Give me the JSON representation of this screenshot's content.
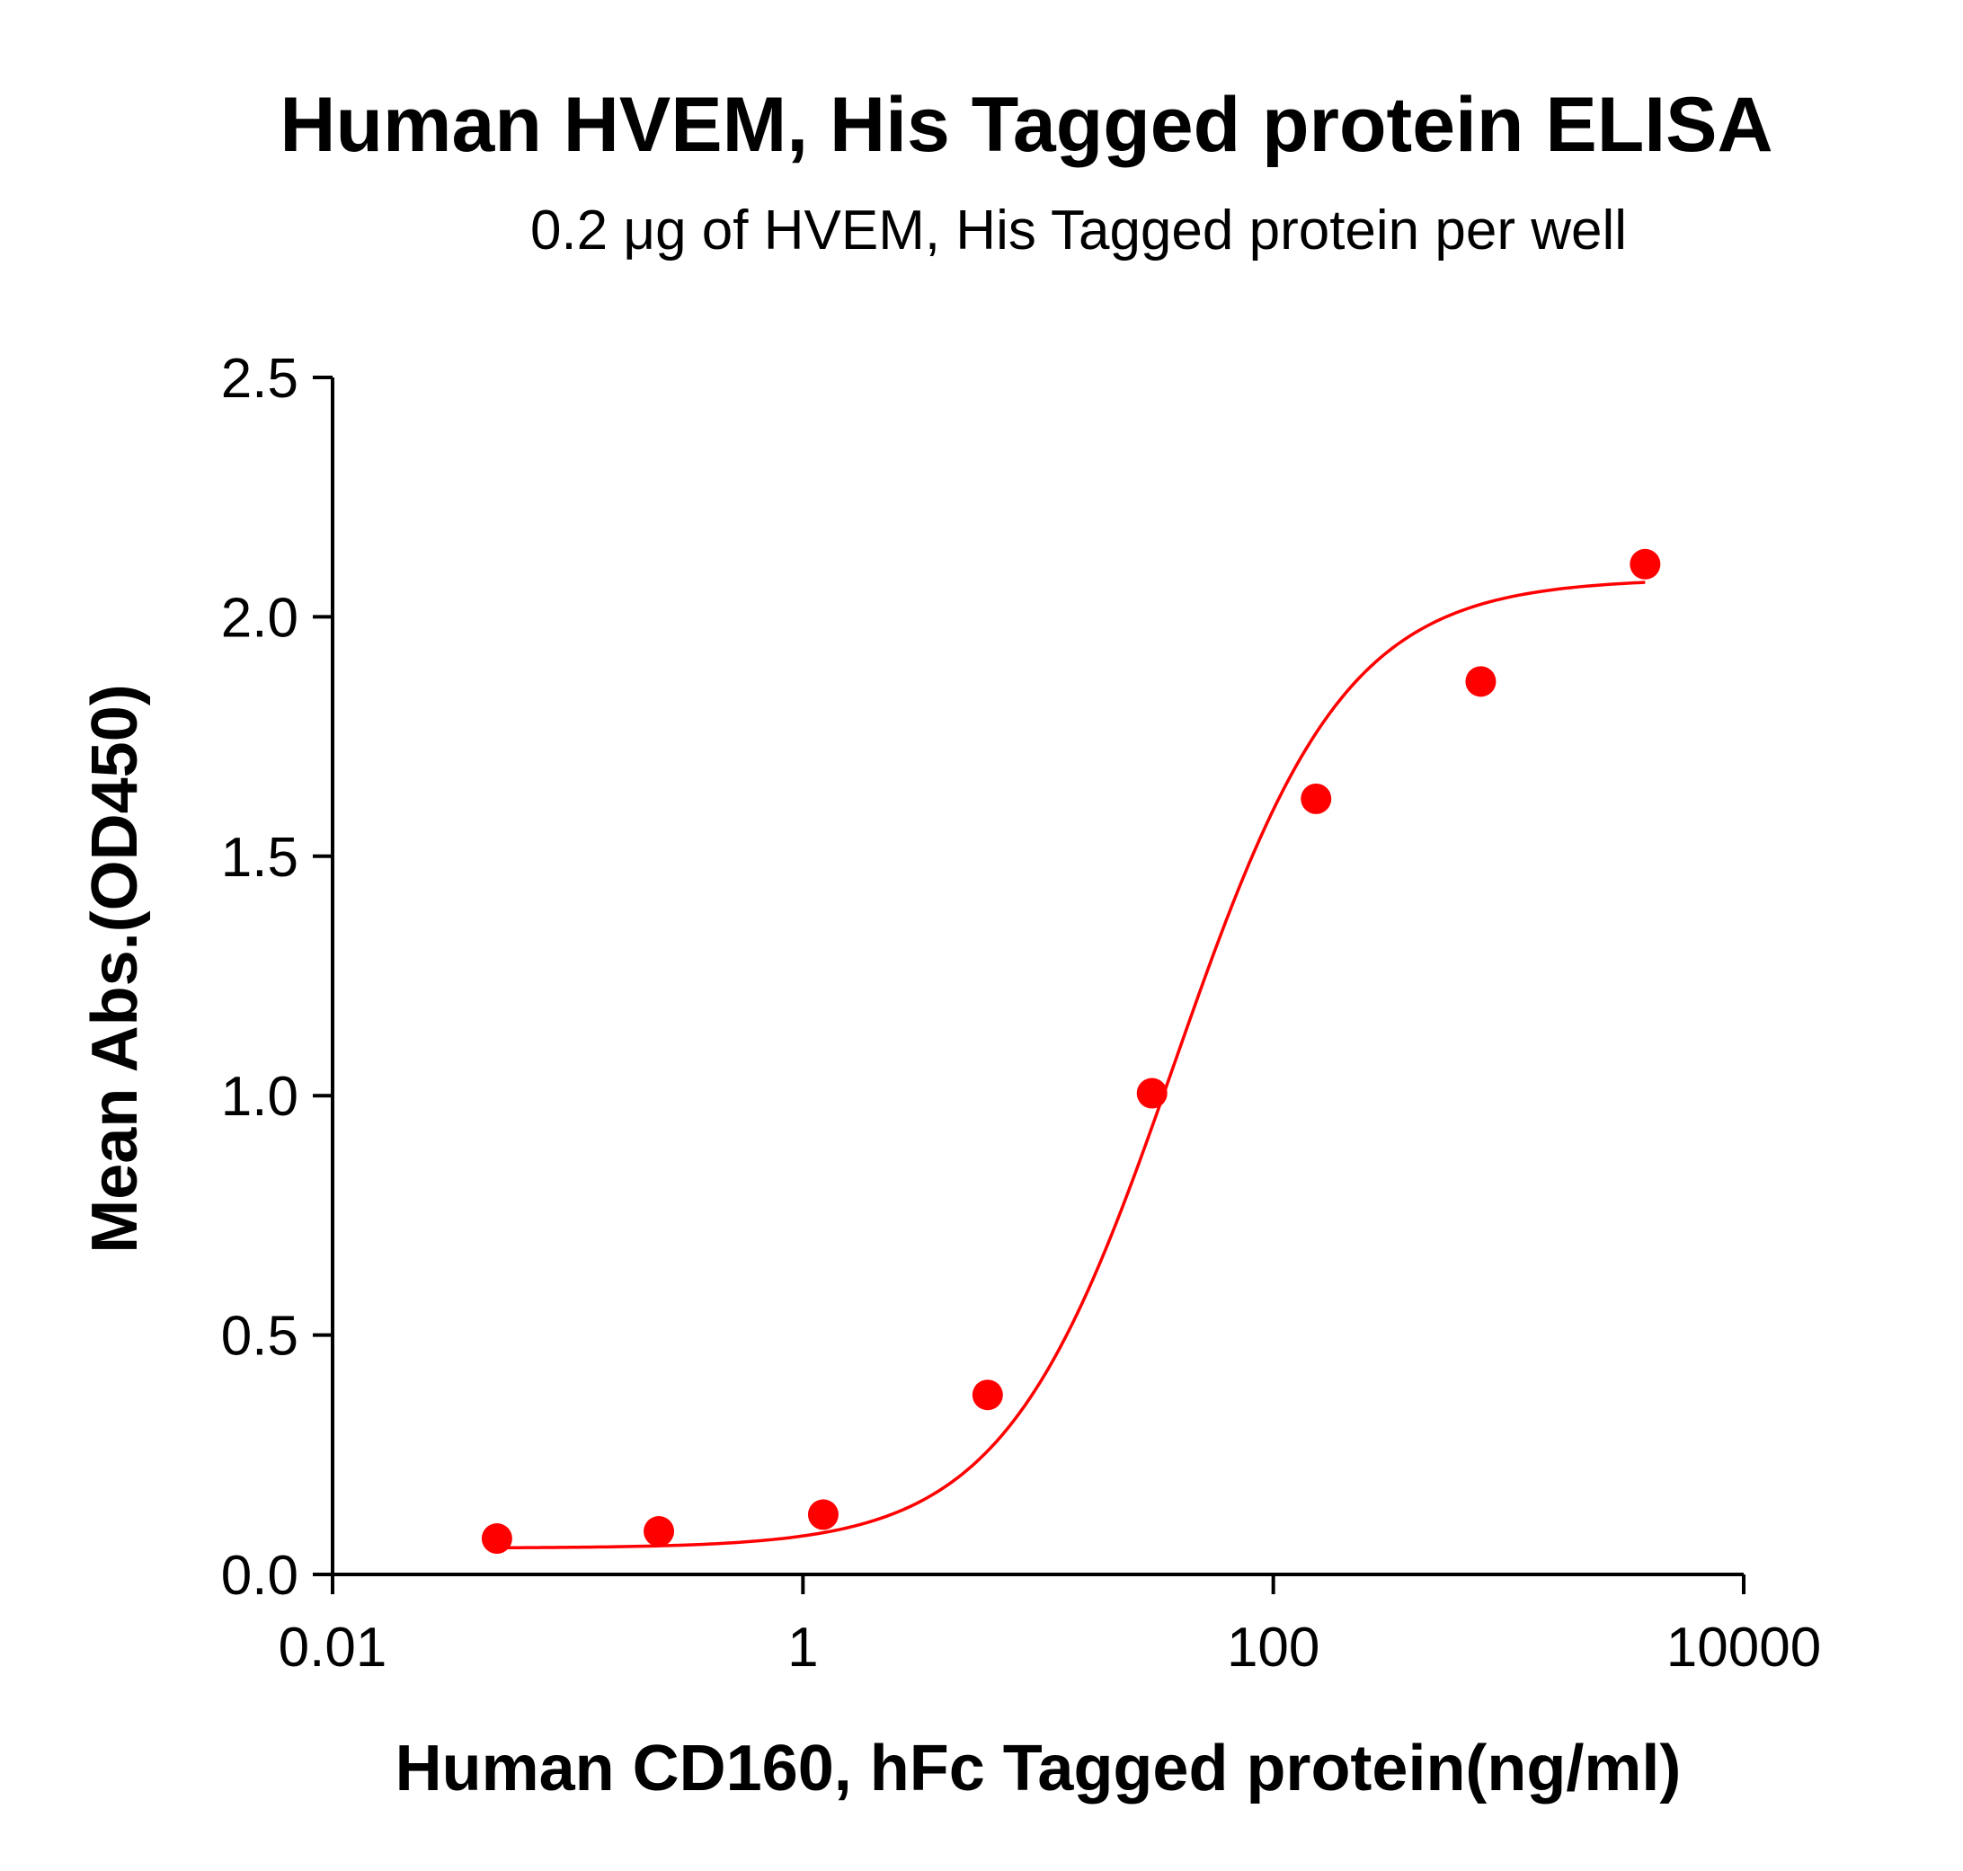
{
  "chart_data": {
    "type": "scatter",
    "title": "Human HVEM, His Tagged protein ELISA",
    "subtitle": "0.2 μg of HVEM, His Tagged protein per well",
    "xlabel": "Human CD160, hFc Tagged protein(ng/ml)",
    "ylabel": "Mean Abs.(OD450)",
    "x_scale": "log",
    "xlim": [
      0.01,
      10000
    ],
    "ylim": [
      0,
      2.5
    ],
    "x_ticks": [
      {
        "value": 0.01,
        "label": "0.01"
      },
      {
        "value": 1,
        "label": "1"
      },
      {
        "value": 100,
        "label": "100"
      },
      {
        "value": 10000,
        "label": "10000"
      }
    ],
    "y_ticks": [
      {
        "value": 0.0,
        "label": "0.0"
      },
      {
        "value": 0.5,
        "label": "0.5"
      },
      {
        "value": 1.0,
        "label": "1.0"
      },
      {
        "value": 1.5,
        "label": "1.5"
      },
      {
        "value": 2.0,
        "label": "2.0"
      },
      {
        "value": 2.5,
        "label": "2.5"
      }
    ],
    "grid": false,
    "legend": "none",
    "series": [
      {
        "color": "#ff0000",
        "marker": "circle",
        "x": [
          0.05,
          0.244,
          1.22,
          6.1,
          30.5,
          152,
          762,
          3810
        ],
        "y": [
          0.075,
          0.09,
          0.125,
          0.375,
          1.005,
          1.62,
          1.865,
          2.11
        ],
        "fit": {
          "model": "4PL",
          "bottom": 0.055,
          "top": 2.08,
          "ec50": 38,
          "hill": 1.2,
          "x_range": [
            0.05,
            3810
          ]
        }
      }
    ]
  }
}
